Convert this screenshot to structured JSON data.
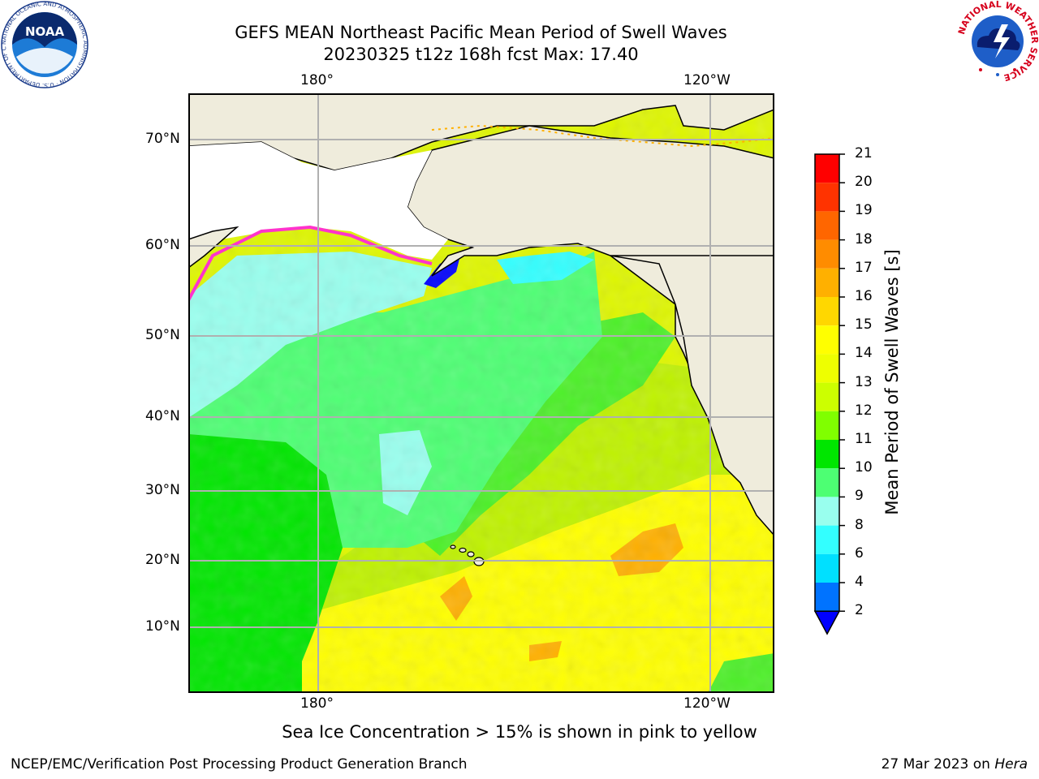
{
  "title": {
    "line1": "GEFS MEAN Northeast Pacific Mean Period of Swell Waves",
    "line2": "20230325 t12z 168h fcst   Max: 17.40"
  },
  "map": {
    "lon_top": [
      "180°",
      "120°W"
    ],
    "lon_bottom": [
      "180°",
      "120°W"
    ],
    "lat_labels": [
      "70°N",
      "60°N",
      "50°N",
      "40°N",
      "30°N",
      "20°N",
      "10°N"
    ],
    "land_color": "#efecdc",
    "ice_color": "#ffffff"
  },
  "colorbar": {
    "title": "Mean Period of Swell Waves [s]",
    "labels": [
      "21",
      "20",
      "19",
      "18",
      "17",
      "16",
      "15",
      "14",
      "13",
      "12",
      "11",
      "10",
      "9",
      "8",
      "6",
      "4",
      "2"
    ],
    "colors": [
      "#ff0000",
      "#ff3300",
      "#ff6600",
      "#ff8c00",
      "#ffb000",
      "#ffd700",
      "#ffff00",
      "#eeff00",
      "#ccff00",
      "#80ff00",
      "#00e600",
      "#4dff73",
      "#99ffee",
      "#33ffff",
      "#00e0ff",
      "#0073ff",
      "#0000ff"
    ]
  },
  "footer": {
    "note": "Sea Ice Concentration > 15% is shown in pink to yellow",
    "left": "NCEP/EMC/Verification Post Processing Product Generation Branch",
    "date": "27 Mar 2023 on ",
    "host": "Hera"
  },
  "logos": {
    "noaa_text": "NOAA",
    "noaa_ring": "NATIONAL OCEANIC AND ATMOSPHERIC ADMINISTRATION · U.S. DEPARTMENT OF COMMERCE",
    "nws_ring": "NATIONAL WEATHER SERVICE"
  }
}
